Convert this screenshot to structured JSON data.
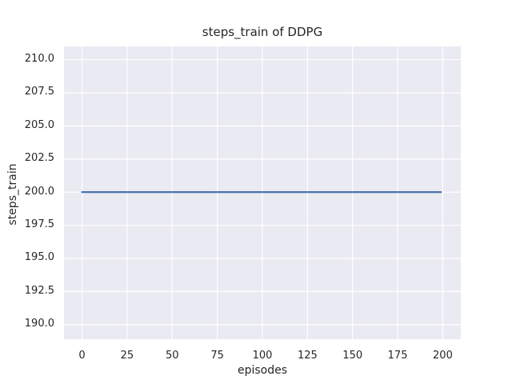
{
  "chart_data": {
    "type": "line",
    "title": "steps_train of DDPG",
    "xlabel": "episodes",
    "ylabel": "steps_train",
    "xlim": [
      -10,
      210
    ],
    "ylim": [
      188.9,
      211.0
    ],
    "xticks": [
      0,
      25,
      50,
      75,
      100,
      125,
      150,
      175,
      200
    ],
    "yticks": [
      190.0,
      192.5,
      195.0,
      197.5,
      200.0,
      202.5,
      205.0,
      207.5,
      210.0
    ],
    "ytick_decimals": 1,
    "grid": true,
    "legend_position": "none",
    "plot_bg_color": "#eaeaf2",
    "grid_color": "#ffffff",
    "text_color": "#262626",
    "series": [
      {
        "name": "DDPG",
        "color": "#4c72b0",
        "linewidth": 2.25,
        "points": [
          [
            0,
            200
          ],
          [
            199,
            200
          ]
        ]
      }
    ]
  }
}
